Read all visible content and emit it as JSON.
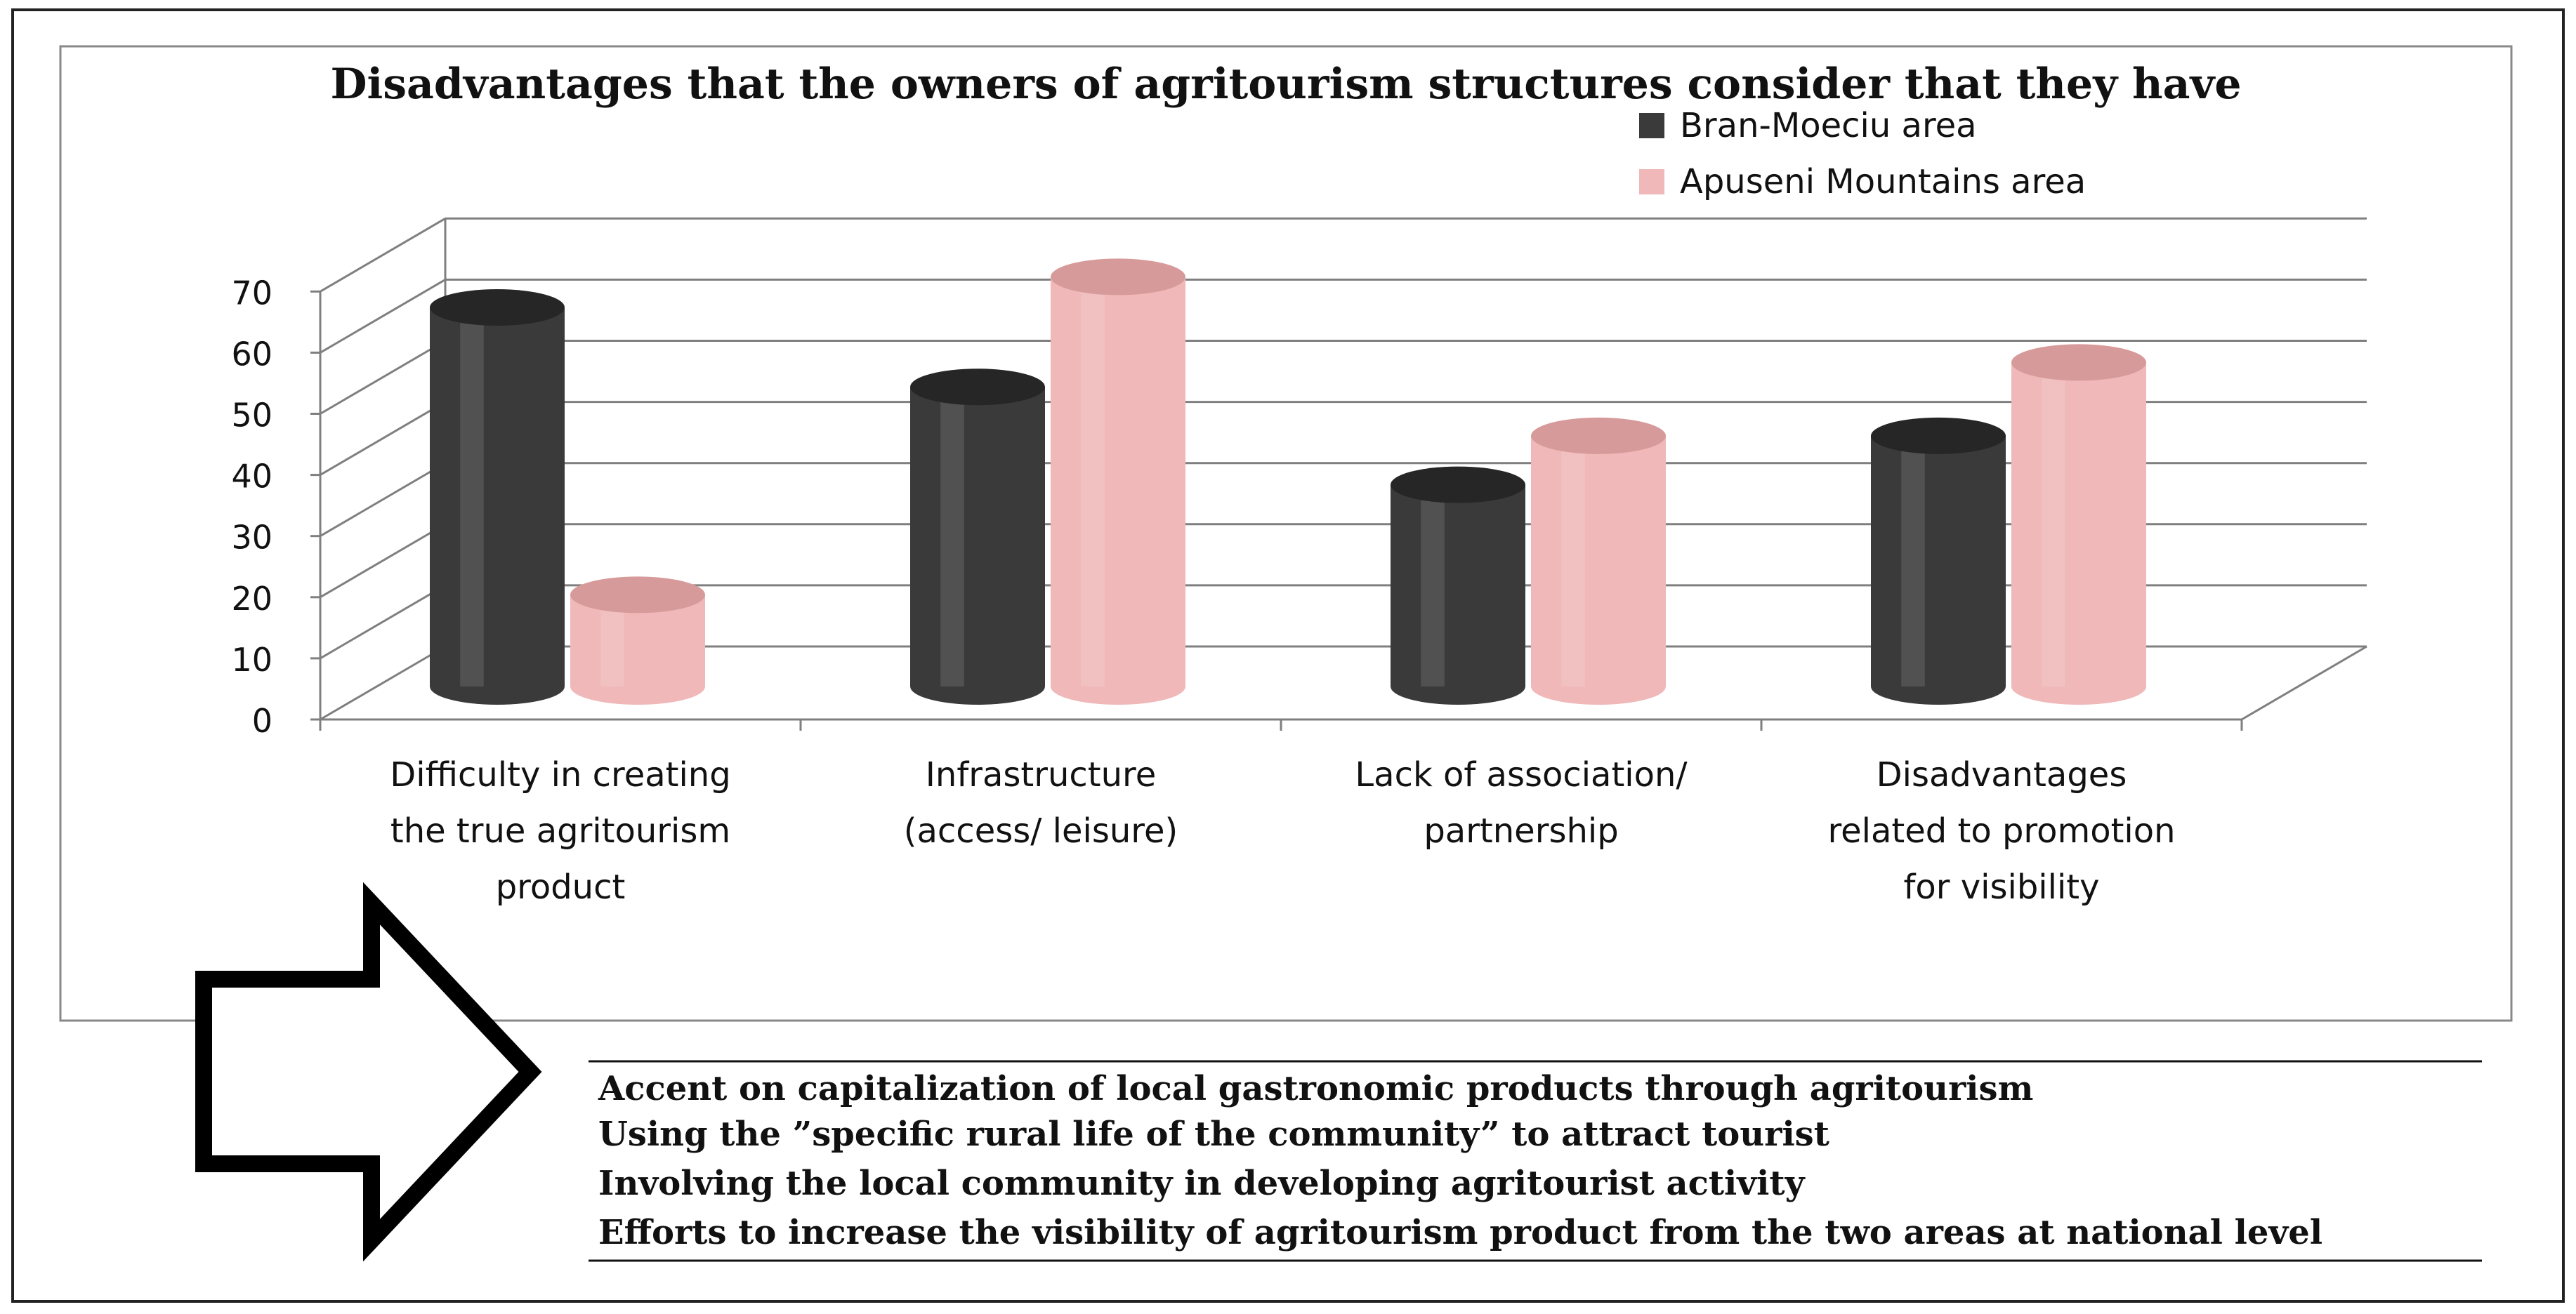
{
  "colors": {
    "series_dark": "#3a3a3a",
    "series_dark_top": "#262626",
    "series_pink": "#f0b8b8",
    "series_pink_top": "#d79a9a",
    "axis": "#7f7f7f",
    "text": "#111111"
  },
  "chart_data": {
    "type": "bar",
    "title": "Disadvantages that the owners of agritourism structures consider that they have",
    "xlabel": "",
    "ylabel": "",
    "ylim": [
      0,
      70
    ],
    "yticks": [
      "0",
      "10",
      "20",
      "30",
      "40",
      "50",
      "60",
      "70"
    ],
    "legend_position": "top-right",
    "categories": [
      [
        "Difficulty in creating",
        "the true agritourism",
        "product"
      ],
      [
        "Infrastructure",
        "(access/ leisure)"
      ],
      [
        "Lack of association/",
        "partnership"
      ],
      [
        "Disadvantages",
        "related to promotion",
        "for visibility"
      ]
    ],
    "series": [
      {
        "name": "Bran-Moeciu area",
        "values": [
          62,
          49,
          33,
          41
        ]
      },
      {
        "name": "Apuseni Mountains area",
        "values": [
          15,
          67,
          41,
          53
        ]
      }
    ]
  },
  "recommendations": {
    "icon": "right-arrow-icon",
    "items": [
      "Accent on capitalization of local gastronomic products through agritourism",
      "Using the ”specific rural life of the community” to attract tourist",
      "Involving the local community in developing agritourist activity",
      "Efforts to increase the visibility of agritourism product from the two areas at national level"
    ]
  }
}
